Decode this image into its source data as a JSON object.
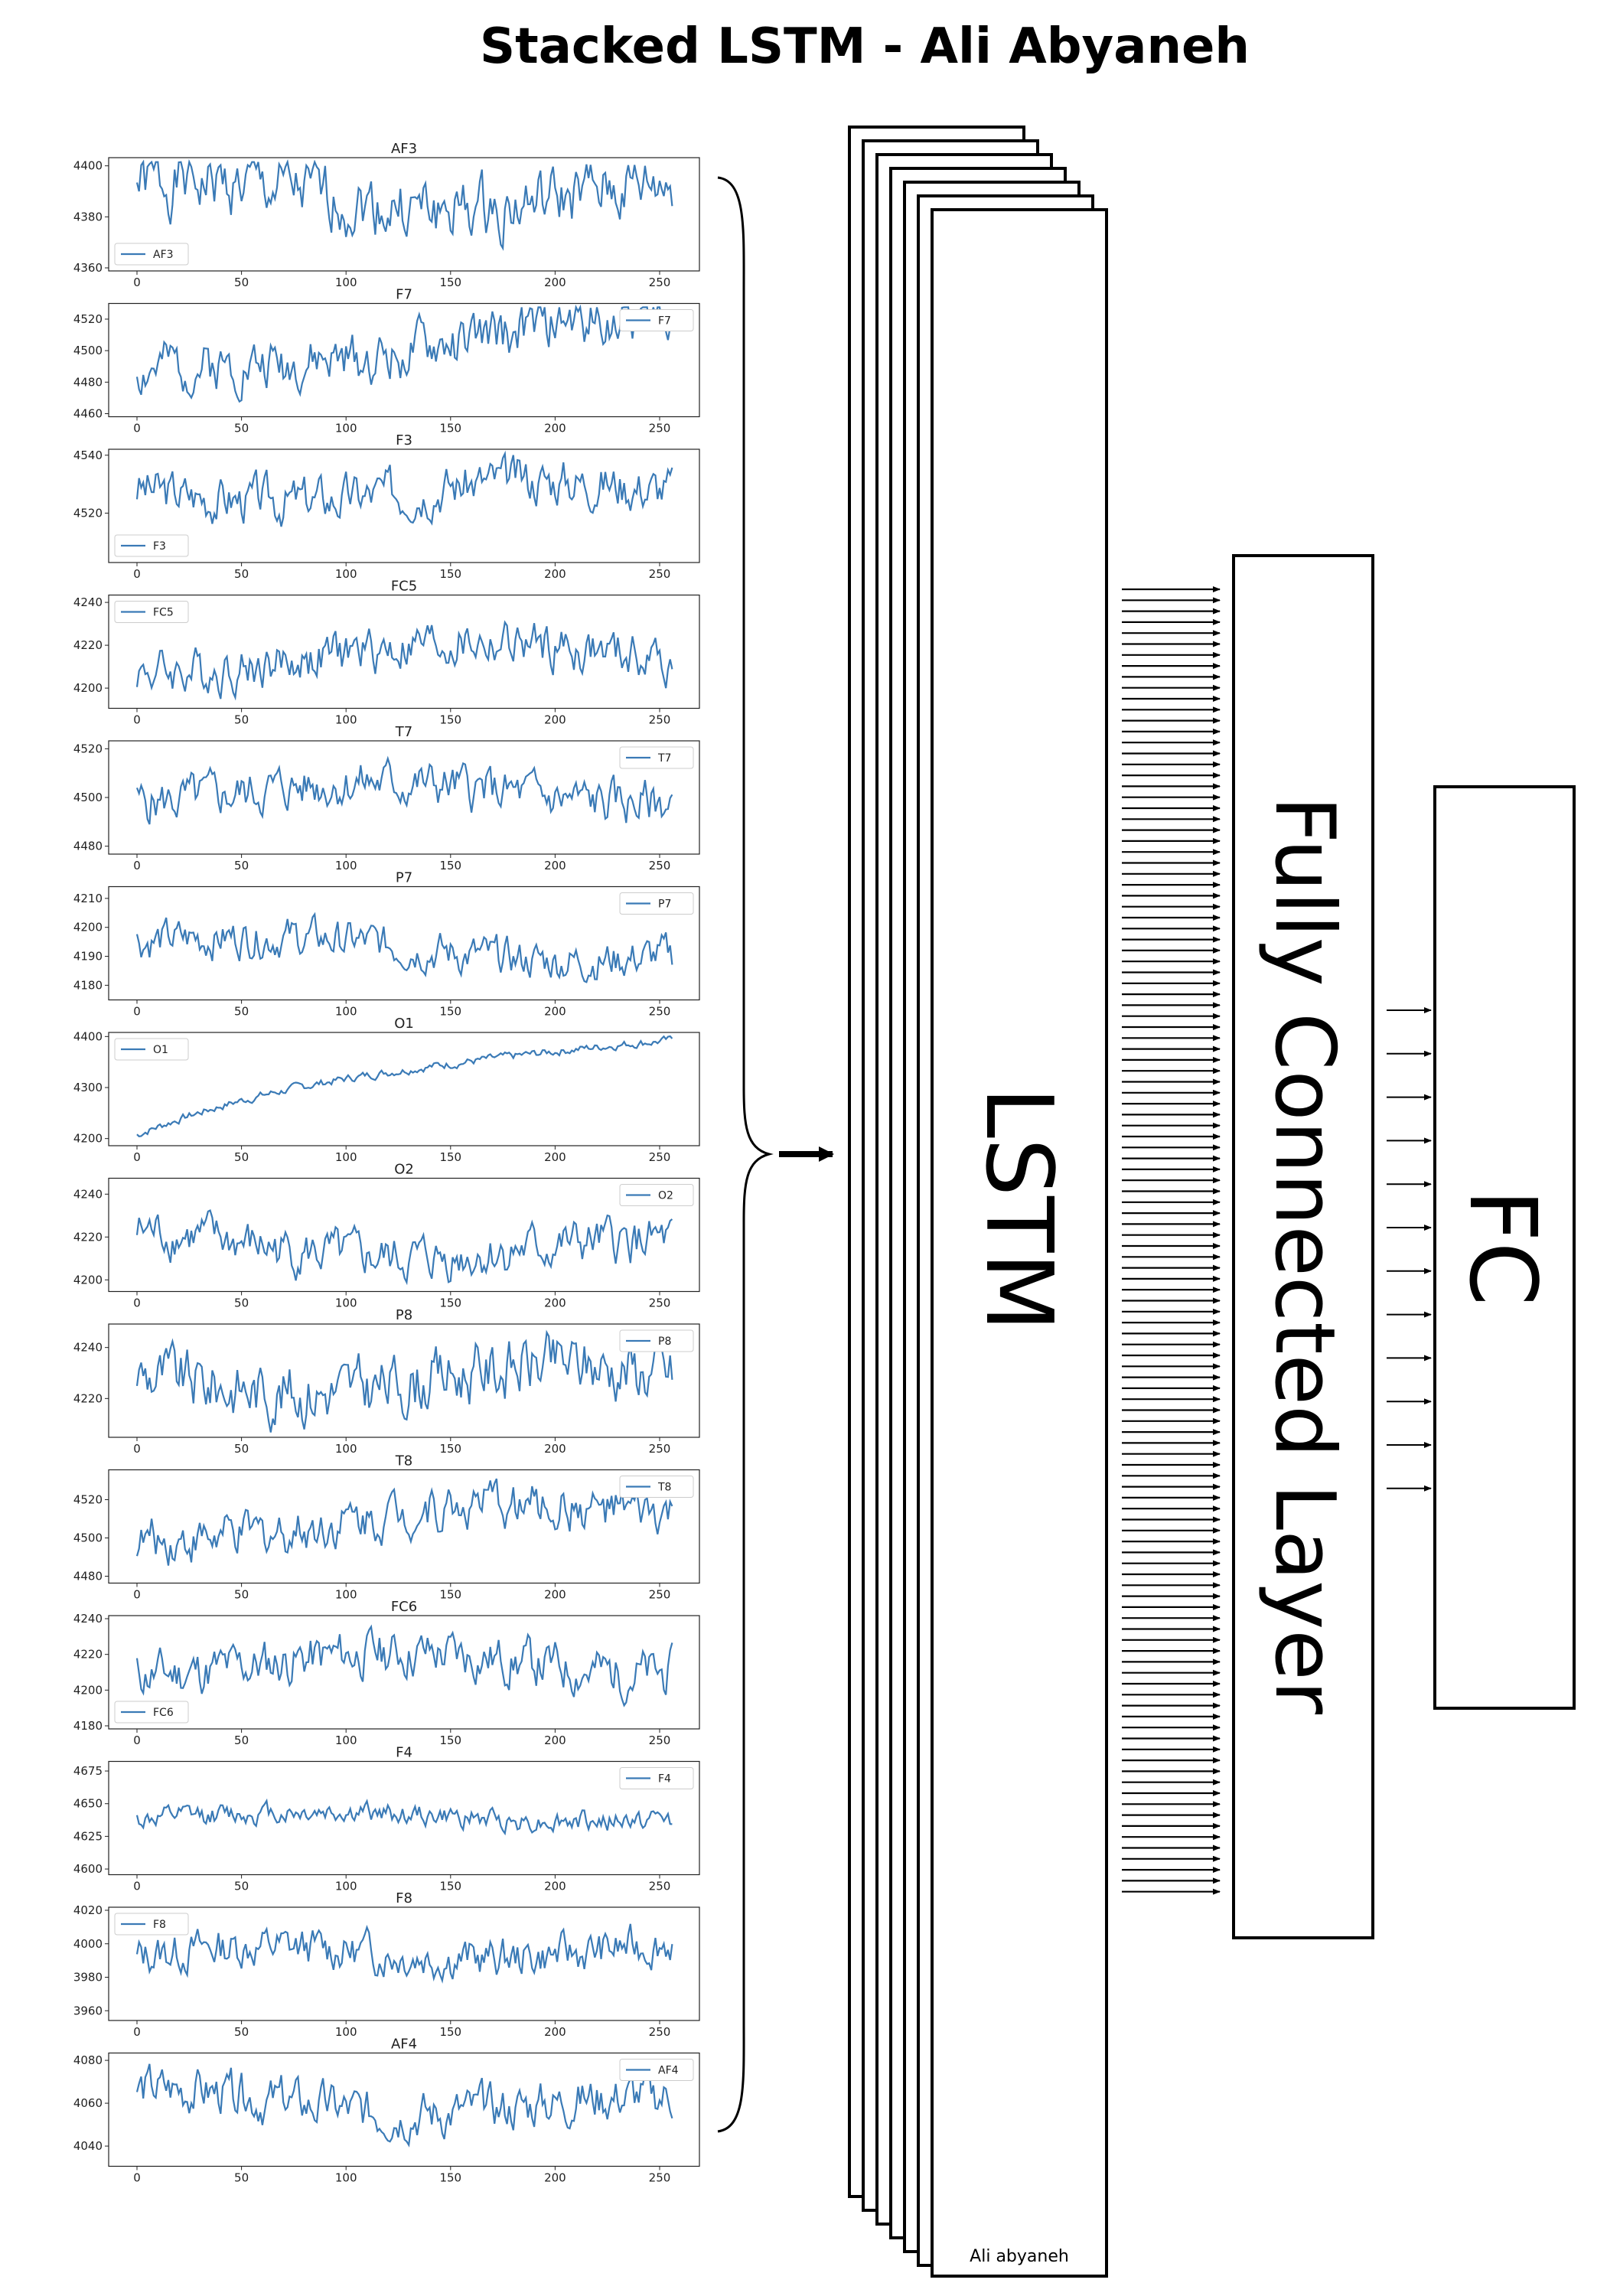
{
  "title": "Stacked LSTM - Ali Abyaneh",
  "blocks": {
    "lstm_label": "LSTM",
    "fully_connected_label": "Fully Connected Layer",
    "fc_label": "FC",
    "signature": "Ali abyaneh"
  },
  "colors": {
    "line": "#3a7ab6",
    "ink": "#000000"
  },
  "x_ticks": [
    0,
    50,
    100,
    150,
    200,
    250
  ],
  "chart_data": [
    {
      "type": "line",
      "title": "AF3",
      "series": [
        {
          "name": "AF3"
        }
      ],
      "legend_pos": "lower-left",
      "y_ticks": [
        4360,
        4380,
        4400
      ],
      "ylim": [
        4360,
        4402
      ],
      "base": 4388,
      "amp": 9,
      "trend": 0,
      "seed": 1
    },
    {
      "type": "line",
      "title": "F7",
      "series": [
        {
          "name": "F7"
        }
      ],
      "legend_pos": "upper-right",
      "y_ticks": [
        4460,
        4480,
        4500,
        4520
      ],
      "ylim": [
        4460,
        4528
      ],
      "base": 4480,
      "amp": 12,
      "trend": 35,
      "seed": 2
    },
    {
      "type": "line",
      "title": "F3",
      "series": [
        {
          "name": "F3"
        }
      ],
      "legend_pos": "lower-left",
      "y_ticks": [
        4520,
        4540
      ],
      "ylim": [
        4504,
        4541
      ],
      "base": 4528,
      "amp": 6,
      "trend": 0,
      "seed": 3
    },
    {
      "type": "line",
      "title": "FC5",
      "series": [
        {
          "name": "FC5"
        }
      ],
      "legend_pos": "upper-left",
      "y_ticks": [
        4200,
        4220,
        4240
      ],
      "ylim": [
        4192,
        4242
      ],
      "base": 4212,
      "amp": 8,
      "trend": 5,
      "seed": 4
    },
    {
      "type": "line",
      "title": "T7",
      "series": [
        {
          "name": "T7"
        }
      ],
      "legend_pos": "upper-right",
      "y_ticks": [
        4480,
        4500,
        4520
      ],
      "ylim": [
        4478,
        4522
      ],
      "base": 4502,
      "amp": 7,
      "trend": 0,
      "seed": 5
    },
    {
      "type": "line",
      "title": "P7",
      "series": [
        {
          "name": "P7"
        }
      ],
      "legend_pos": "upper-right",
      "y_ticks": [
        4180,
        4190,
        4200,
        4210
      ],
      "ylim": [
        4176,
        4213
      ],
      "base": 4196,
      "amp": 5,
      "trend": -5,
      "seed": 6
    },
    {
      "type": "line",
      "title": "O1",
      "series": [
        {
          "name": "O1"
        }
      ],
      "legend_pos": "upper-left",
      "y_ticks": [
        4200,
        4300,
        4400
      ],
      "ylim": [
        4192,
        4402
      ],
      "base": 4205,
      "amp": 6,
      "trend": 185,
      "seed": 7
    },
    {
      "type": "line",
      "title": "O2",
      "series": [
        {
          "name": "O2"
        }
      ],
      "legend_pos": "upper-right",
      "y_ticks": [
        4200,
        4220,
        4240
      ],
      "ylim": [
        4196,
        4246
      ],
      "base": 4218,
      "amp": 8,
      "trend": -5,
      "seed": 8
    },
    {
      "type": "line",
      "title": "P8",
      "series": [
        {
          "name": "P8"
        }
      ],
      "legend_pos": "upper-right",
      "y_ticks": [
        4220,
        4240
      ],
      "ylim": [
        4206,
        4248
      ],
      "base": 4228,
      "amp": 9,
      "trend": 0,
      "seed": 9
    },
    {
      "type": "line",
      "title": "T8",
      "series": [
        {
          "name": "T8"
        }
      ],
      "legend_pos": "upper-right",
      "y_ticks": [
        4480,
        4500,
        4520
      ],
      "ylim": [
        4478,
        4534
      ],
      "base": 4502,
      "amp": 9,
      "trend": 12,
      "seed": 10
    },
    {
      "type": "line",
      "title": "FC6",
      "series": [
        {
          "name": "FC6"
        }
      ],
      "legend_pos": "lower-left",
      "y_ticks": [
        4180,
        4200,
        4220,
        4240
      ],
      "ylim": [
        4180,
        4240
      ],
      "base": 4215,
      "amp": 10,
      "trend": 0,
      "seed": 11
    },
    {
      "type": "line",
      "title": "F4",
      "series": [
        {
          "name": "F4"
        }
      ],
      "legend_pos": "upper-right",
      "y_ticks": [
        4600,
        4625,
        4650,
        4675
      ],
      "ylim": [
        4598,
        4680
      ],
      "base": 4640,
      "amp": 6,
      "trend": 0,
      "seed": 12
    },
    {
      "type": "line",
      "title": "F8",
      "series": [
        {
          "name": "F8"
        }
      ],
      "legend_pos": "upper-left",
      "y_ticks": [
        3960,
        3980,
        4000,
        4020
      ],
      "ylim": [
        3956,
        4020
      ],
      "base": 3990,
      "amp": 9,
      "trend": 8,
      "seed": 13
    },
    {
      "type": "line",
      "title": "AF4",
      "series": [
        {
          "name": "AF4"
        }
      ],
      "legend_pos": "upper-right",
      "y_ticks": [
        4040,
        4060,
        4080
      ],
      "ylim": [
        4032,
        4082
      ],
      "base": 4062,
      "amp": 8,
      "trend": -3,
      "seed": 14
    }
  ]
}
